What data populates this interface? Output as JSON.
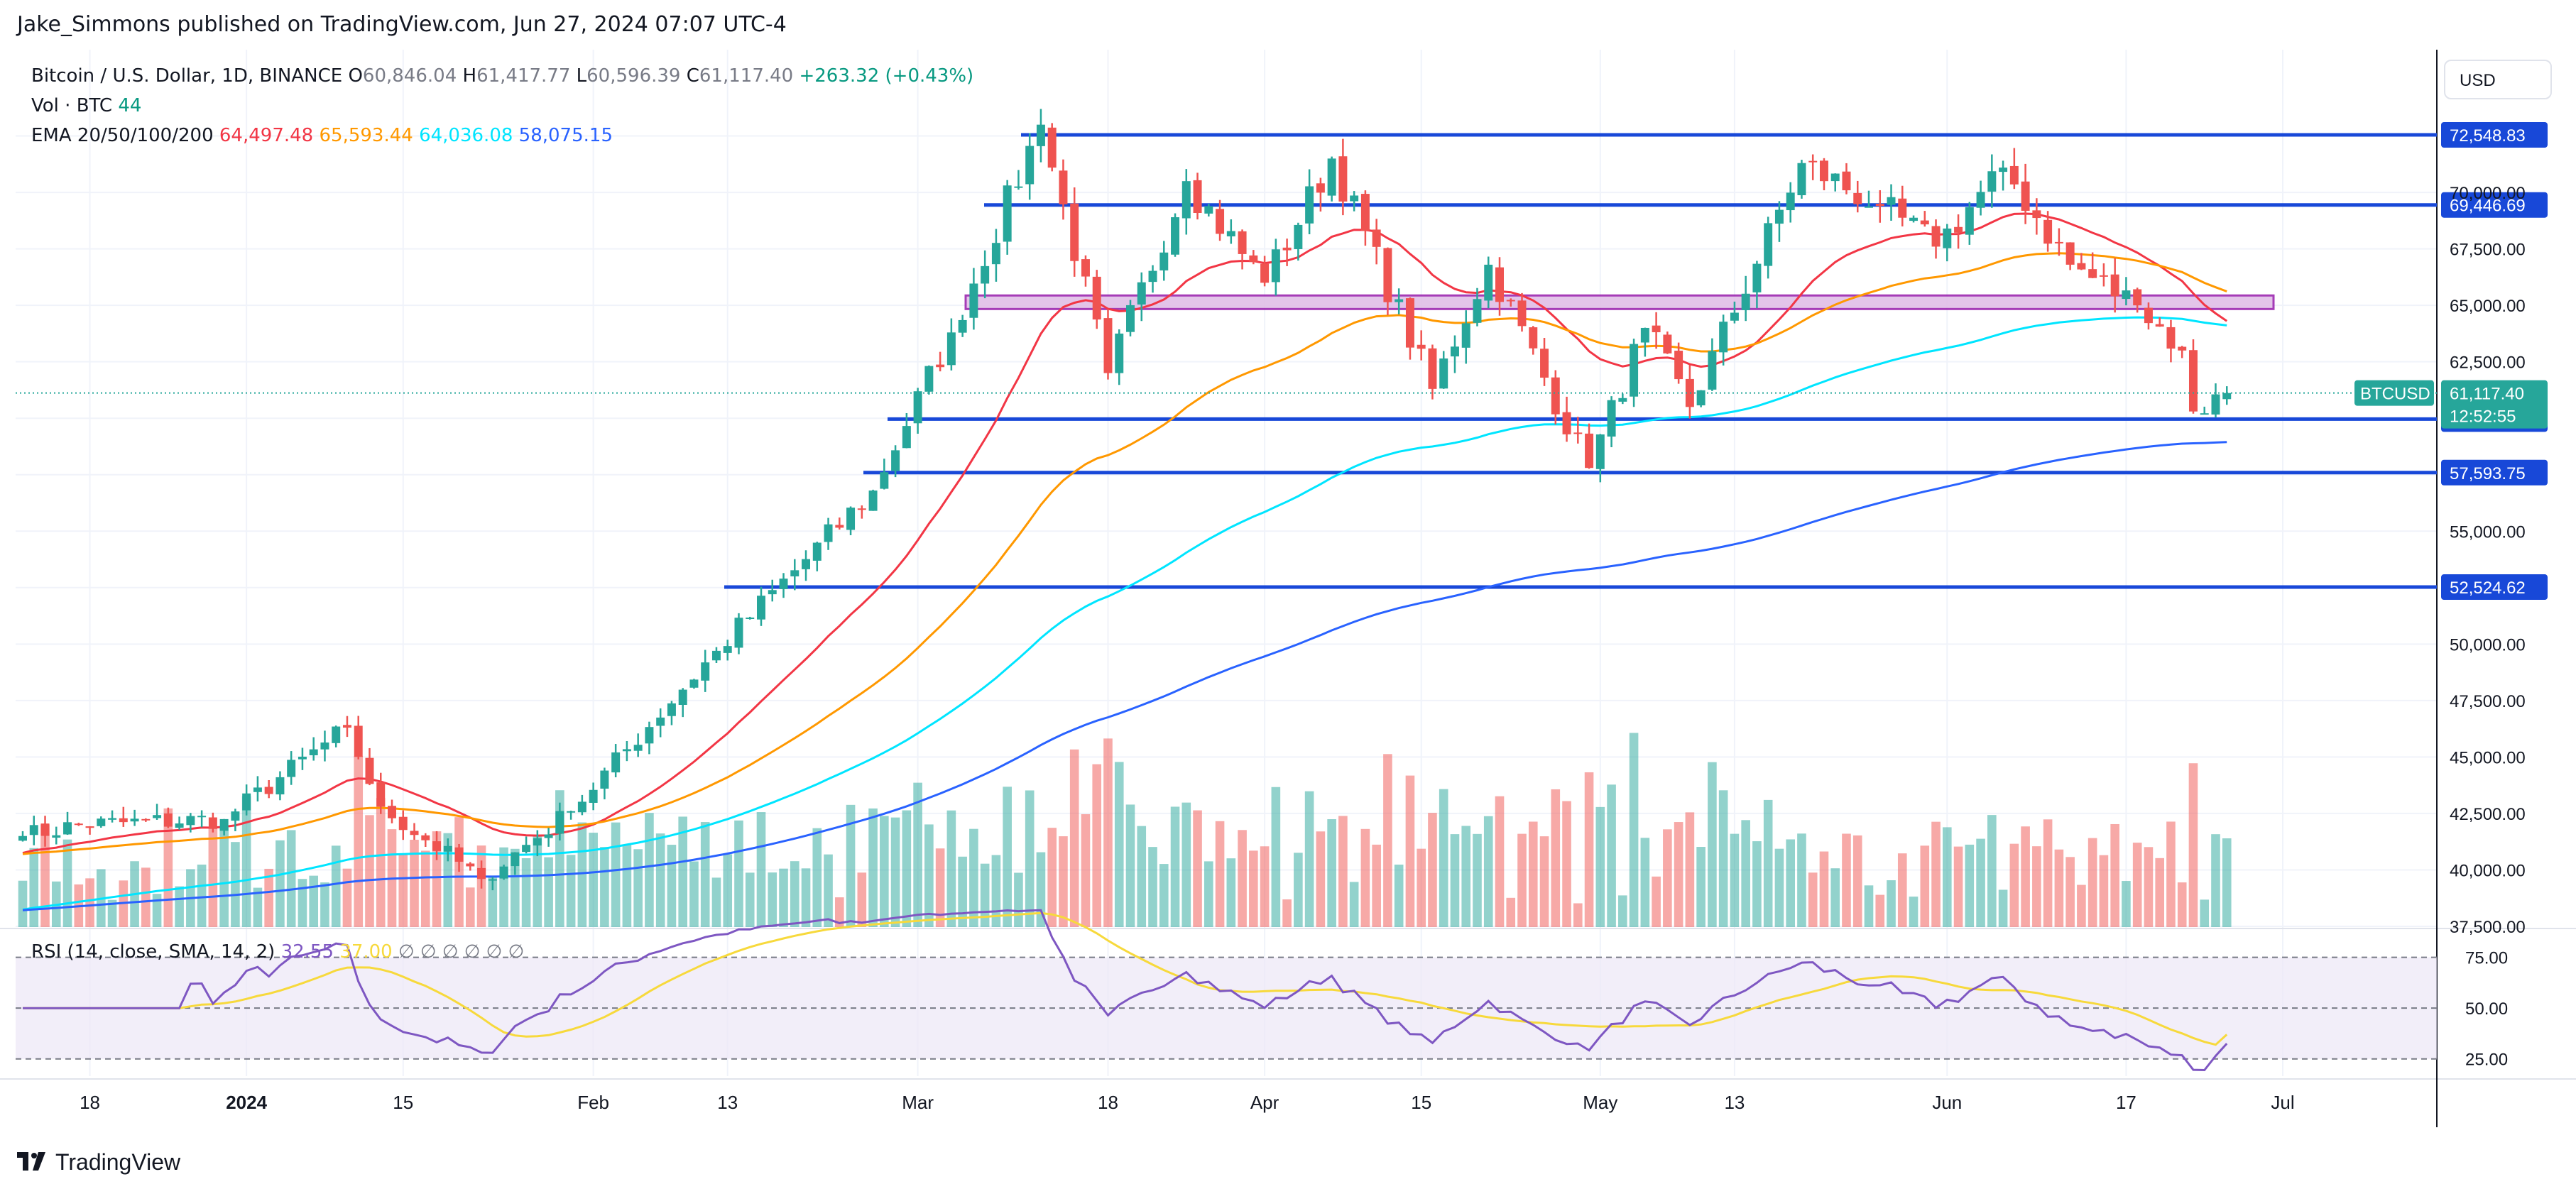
{
  "header": {
    "published_text": "Jake_Simmons published on TradingView.com, Jun 27, 2024 07:07 UTC-4"
  },
  "legend": {
    "symbol": "Bitcoin / U.S. Dollar, 1D, BINANCE",
    "ohlc": [
      {
        "k": "O",
        "v": "60,846.04"
      },
      {
        "k": "H",
        "v": "61,417.77"
      },
      {
        "k": "L",
        "v": "60,596.39"
      },
      {
        "k": "C",
        "v": "61,117.40"
      }
    ],
    "change": "+263.32 (+0.43%)",
    "volume_label": "Vol · BTC",
    "volume_value": "44",
    "ema_label": "EMA 20/50/100/200",
    "ema_values": [
      {
        "v": "64,497.48",
        "color": "#f23645"
      },
      {
        "v": "65,593.44",
        "color": "#ff9800"
      },
      {
        "v": "64,036.08",
        "color": "#00e5ff"
      },
      {
        "v": "58,075.15",
        "color": "#2962ff"
      }
    ]
  },
  "rsi_legend": {
    "label": "RSI (14, close, SMA, 14, 2)",
    "rsi_value": "32.55",
    "sma_value": "37.00",
    "na_marks": [
      "∅",
      "∅",
      "∅",
      "∅",
      "∅",
      "∅"
    ]
  },
  "price_axis": {
    "currency_button": "USD",
    "ticks": [
      "70,000.00",
      "67,500.00",
      "65,000.00",
      "62,500.00",
      "55,000.00",
      "50,000.00",
      "47,500.00",
      "45,000.00",
      "42,500.00",
      "40,000.00",
      "37,500.00"
    ],
    "current_price_symbol": "BTCUSD",
    "current_price": "61,117.40",
    "countdown": "12:52:55"
  },
  "rsi_axis": {
    "ticks": [
      "75.00",
      "50.00",
      "25.00"
    ]
  },
  "time_axis": {
    "labels": [
      {
        "text": "18",
        "bold": false
      },
      {
        "text": "2024",
        "bold": true
      },
      {
        "text": "15",
        "bold": false
      },
      {
        "text": "Feb",
        "bold": false
      },
      {
        "text": "13",
        "bold": false
      },
      {
        "text": "Mar",
        "bold": false
      },
      {
        "text": "18",
        "bold": false
      },
      {
        "text": "Apr",
        "bold": false
      },
      {
        "text": "15",
        "bold": false
      },
      {
        "text": "May",
        "bold": false
      },
      {
        "text": "13",
        "bold": false
      },
      {
        "text": "Jun",
        "bold": false
      },
      {
        "text": "17",
        "bold": false
      },
      {
        "text": "Jul",
        "bold": false
      }
    ]
  },
  "colors": {
    "up": "#26a69a",
    "down": "#ef5350",
    "level_line": "#1848d8",
    "zone_fill": "#e1bee7",
    "zone_border": "#9c27b0",
    "rsi_line": "#7e57c2",
    "rsi_sma": "#f7d93c",
    "rsi_band": "#ede7f6"
  },
  "footer": {
    "brand": "TradingView"
  },
  "chart_data": {
    "type": "candlestick",
    "title": "Bitcoin / U.S. Dollar, 1D, BINANCE",
    "y_axis_price_range": [
      37500,
      72548.83
    ],
    "horizontal_levels": [
      {
        "label": "72,548.83",
        "value": 72548.83
      },
      {
        "label": "69,446.69",
        "value": 69446.69
      },
      {
        "label": "59,963.47",
        "value": 59963.47
      },
      {
        "label": "57,593.75",
        "value": 57593.75
      },
      {
        "label": "52,524.62",
        "value": 52524.62
      }
    ],
    "resistance_zone": {
      "low": 64900,
      "high": 65500
    },
    "anchors": [
      [
        "2023-12-13",
        41500
      ],
      [
        "2023-12-18",
        42000
      ],
      [
        "2023-12-31",
        42250
      ],
      [
        "2024-01-11",
        46300
      ],
      [
        "2024-01-14",
        42800
      ],
      [
        "2024-01-23",
        39600
      ],
      [
        "2024-01-31",
        42600
      ],
      [
        "2024-02-13",
        49700
      ],
      [
        "2024-02-27",
        56800
      ],
      [
        "2024-03-05",
        63800
      ],
      [
        "2024-03-13",
        73000
      ],
      [
        "2024-03-19",
        62000
      ],
      [
        "2024-03-26",
        70500
      ],
      [
        "2024-04-02",
        66000
      ],
      [
        "2024-04-08",
        71500
      ],
      [
        "2024-04-17",
        61300
      ],
      [
        "2024-04-22",
        66800
      ],
      [
        "2024-05-01",
        57800
      ],
      [
        "2024-05-06",
        64000
      ],
      [
        "2024-05-10",
        60500
      ],
      [
        "2024-05-20",
        71300
      ],
      [
        "2024-05-27",
        69400
      ],
      [
        "2024-06-01",
        67600
      ],
      [
        "2024-06-07",
        71100
      ],
      [
        "2024-06-13",
        66800
      ],
      [
        "2024-06-19",
        65000
      ],
      [
        "2024-06-23",
        63000
      ],
      [
        "2024-06-24",
        60300
      ],
      [
        "2024-06-27",
        61117
      ]
    ],
    "last_candle": {
      "date": "2024-06-27",
      "open": 60846.04,
      "high": 61417.77,
      "low": 60596.39,
      "close": 61117.4
    },
    "volume_last": 44,
    "ema_last": {
      "ema20": 64497.48,
      "ema50": 65593.44,
      "ema100": 64036.08,
      "ema200": 58075.15
    },
    "rsi": {
      "length": 14,
      "last": 32.55,
      "sma_last": 37.0,
      "levels": [
        25,
        50,
        75
      ]
    }
  }
}
